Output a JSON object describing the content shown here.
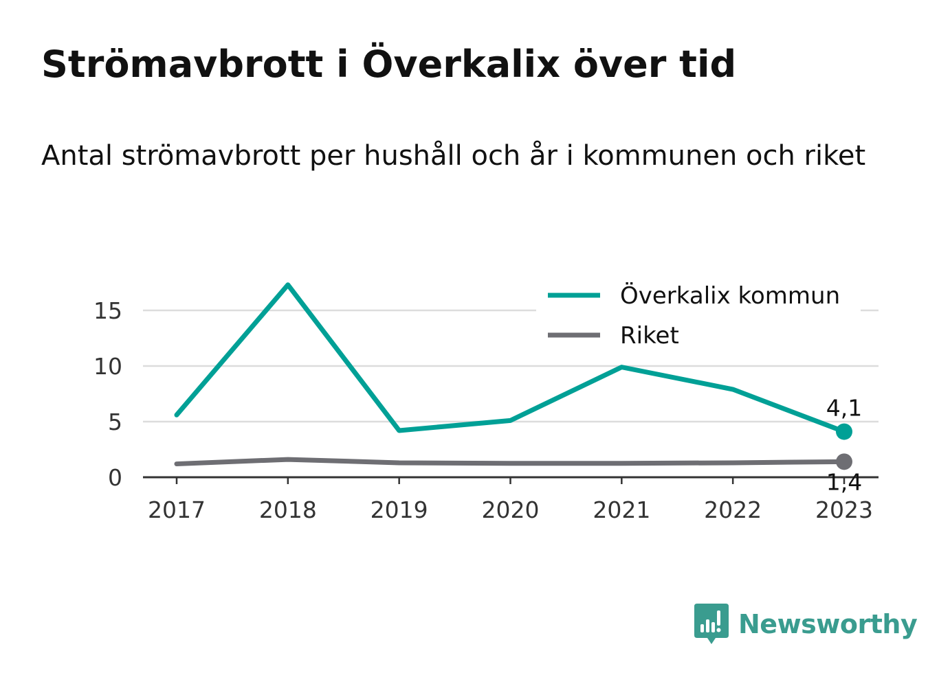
{
  "title": "Strömavbrott i Överkalix över tid",
  "subtitle": "Antal strömavbrott per hushåll och år i kommunen och riket",
  "brand": {
    "name": "Newsworthy",
    "color": "#3a9c8f",
    "icon": "bar-chart-speech-bubble-icon"
  },
  "chart_data": {
    "type": "line",
    "x": [
      "2017",
      "2018",
      "2019",
      "2020",
      "2021",
      "2022",
      "2023"
    ],
    "ylim": [
      0,
      18
    ],
    "yticks": [
      "0",
      "5",
      "10",
      "15"
    ],
    "grid": true,
    "legend_position": "top-right",
    "series": [
      {
        "name": "Överkalix kommun",
        "color": "#00a096",
        "values": [
          5.6,
          17.3,
          4.2,
          5.1,
          9.9,
          7.9,
          4.1
        ],
        "end_label": "4,1"
      },
      {
        "name": "Riket",
        "color": "#6e6e73",
        "values": [
          1.2,
          1.6,
          1.3,
          1.25,
          1.25,
          1.3,
          1.4
        ],
        "end_label": "1,4"
      }
    ]
  }
}
